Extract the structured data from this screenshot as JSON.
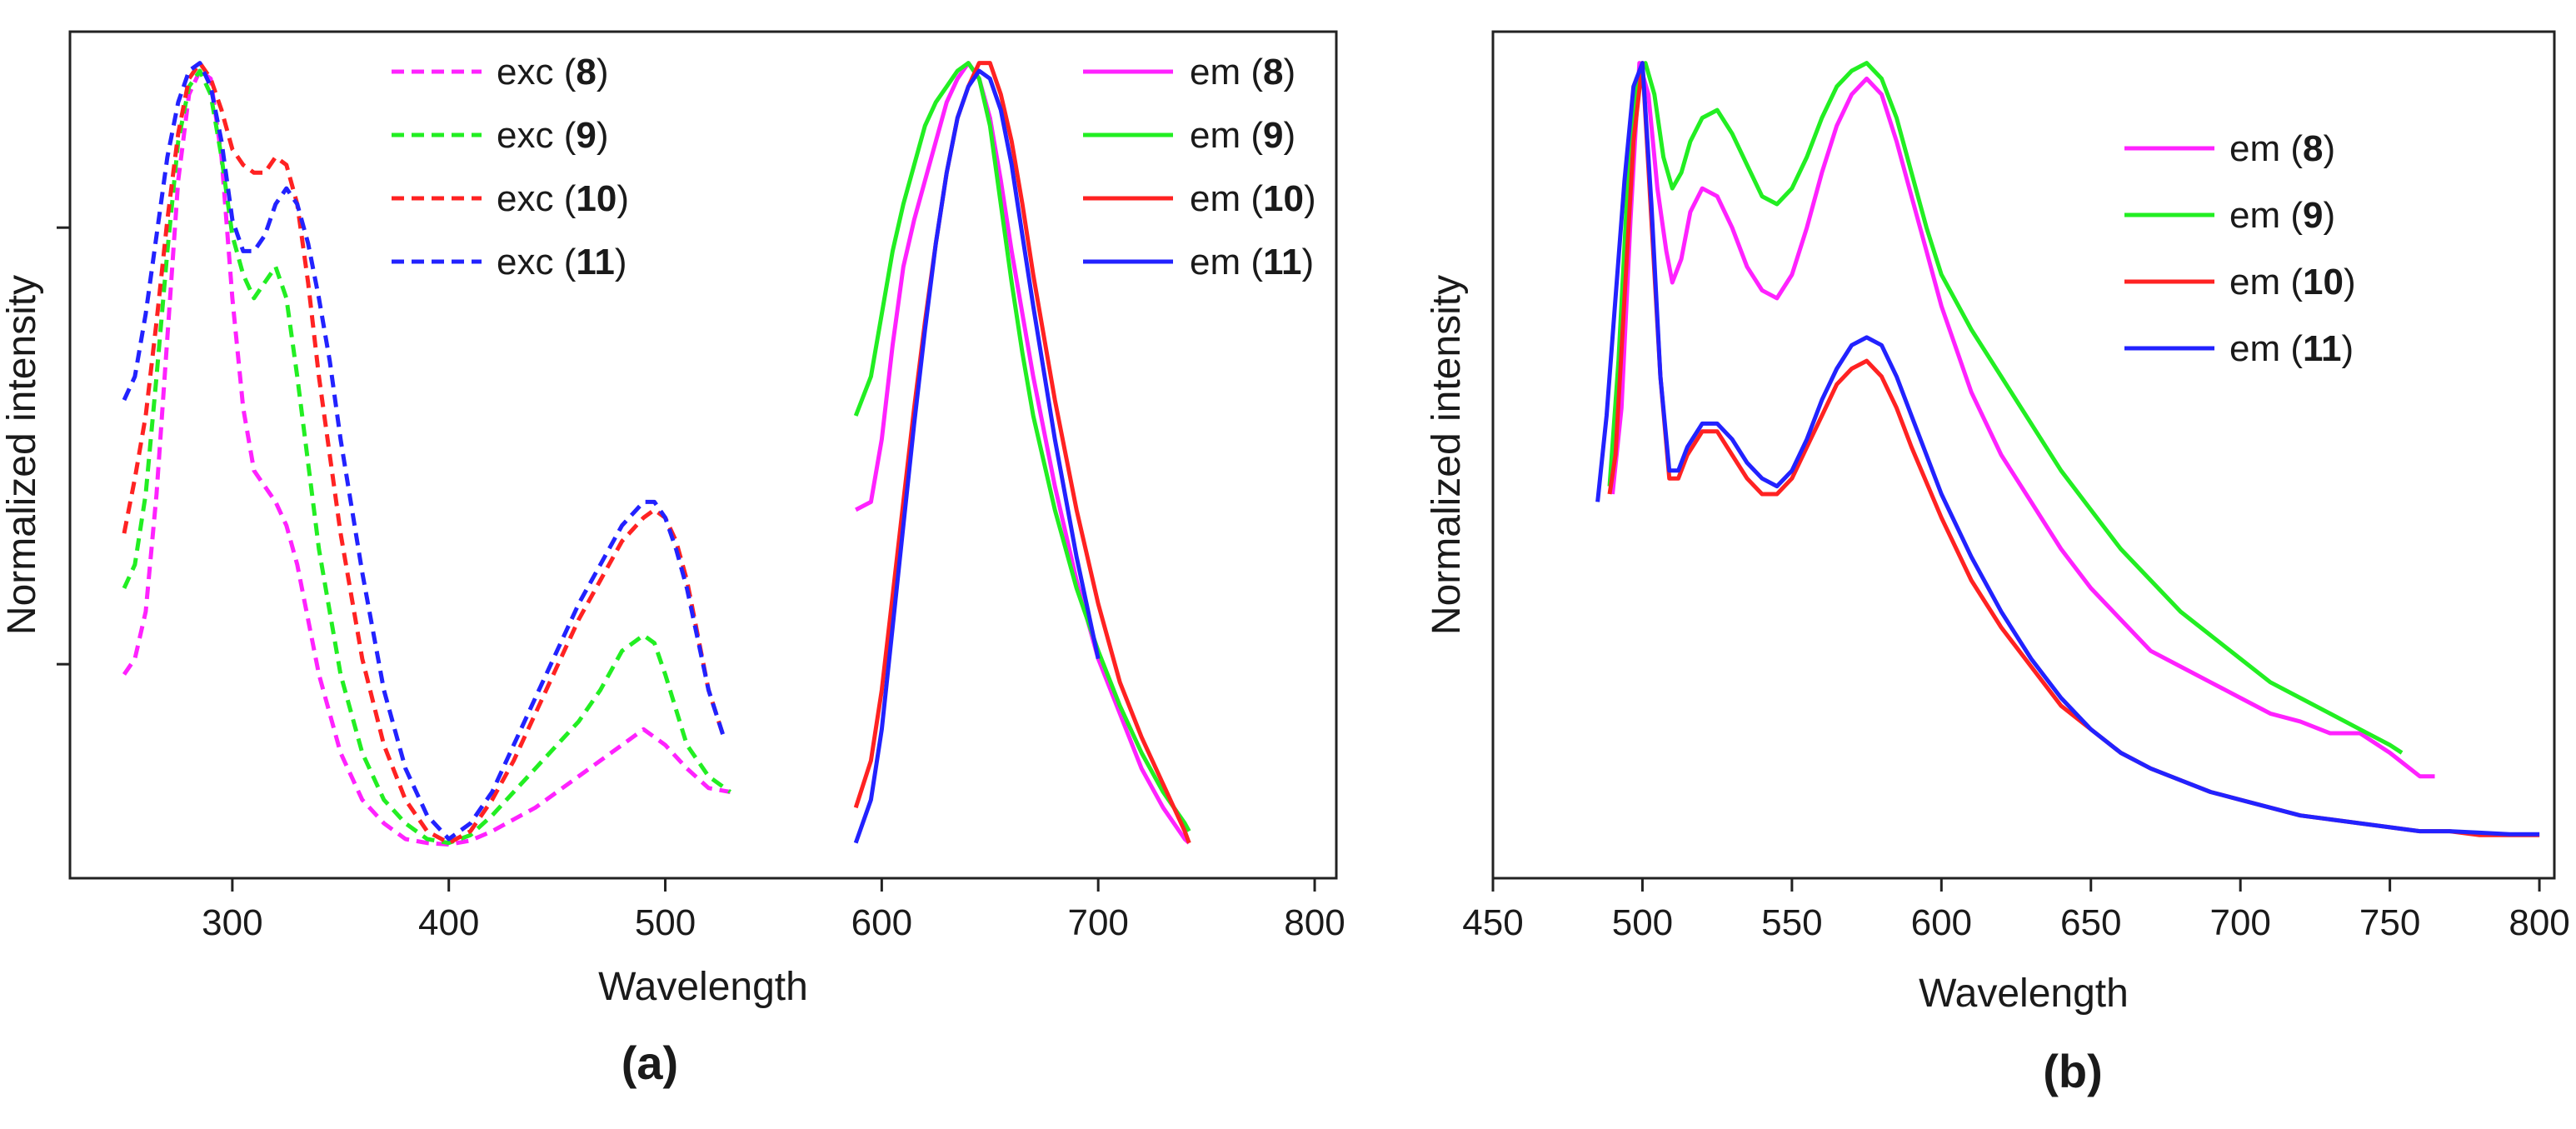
{
  "chart_data": [
    {
      "type": "line",
      "panel_label": "(a)",
      "xlabel": "Wavelength",
      "ylabel": "Normalized intensity",
      "xlim": [
        225,
        810
      ],
      "ylim": [
        -0.04,
        1.04
      ],
      "xticks": [
        300,
        400,
        500,
        600,
        700,
        800
      ],
      "yticks": [
        0.233,
        0.79
      ],
      "show_ytick_labels": false,
      "legend_columns": [
        {
          "position": "top-center",
          "series": [
            0,
            1,
            2,
            3
          ]
        },
        {
          "position": "top-right",
          "series": [
            4,
            5,
            6,
            7
          ]
        }
      ],
      "series": [
        {
          "name": "exc",
          "label_num": "8",
          "color": "#ff22ff",
          "dash": true,
          "x": [
            250,
            255,
            260,
            265,
            270,
            275,
            280,
            285,
            290,
            295,
            300,
            305,
            310,
            315,
            320,
            325,
            330,
            340,
            350,
            360,
            370,
            380,
            390,
            400,
            410,
            420,
            430,
            440,
            450,
            460,
            470,
            480,
            490,
            495,
            500,
            510,
            520,
            530
          ],
          "y": [
            0.22,
            0.24,
            0.3,
            0.45,
            0.65,
            0.85,
            0.96,
            0.99,
            0.98,
            0.88,
            0.7,
            0.56,
            0.48,
            0.46,
            0.44,
            0.41,
            0.36,
            0.22,
            0.12,
            0.06,
            0.03,
            0.01,
            0.005,
            0.003,
            0.008,
            0.02,
            0.035,
            0.05,
            0.07,
            0.09,
            0.11,
            0.13,
            0.15,
            0.14,
            0.13,
            0.1,
            0.075,
            0.07
          ]
        },
        {
          "name": "exc",
          "label_num": "9",
          "color": "#22ee22",
          "dash": true,
          "x": [
            250,
            255,
            260,
            265,
            270,
            275,
            280,
            285,
            290,
            295,
            300,
            305,
            310,
            315,
            320,
            325,
            330,
            335,
            340,
            350,
            360,
            370,
            380,
            390,
            400,
            410,
            420,
            430,
            440,
            450,
            460,
            470,
            480,
            490,
            495,
            500,
            510,
            520,
            530
          ],
          "y": [
            0.33,
            0.36,
            0.45,
            0.6,
            0.76,
            0.9,
            0.97,
            0.99,
            0.96,
            0.88,
            0.78,
            0.73,
            0.7,
            0.72,
            0.74,
            0.7,
            0.6,
            0.49,
            0.38,
            0.22,
            0.12,
            0.06,
            0.03,
            0.01,
            0.005,
            0.015,
            0.04,
            0.07,
            0.1,
            0.13,
            0.16,
            0.2,
            0.25,
            0.27,
            0.26,
            0.22,
            0.13,
            0.09,
            0.07
          ]
        },
        {
          "name": "exc",
          "label_num": "10",
          "color": "#ff2222",
          "dash": true,
          "x": [
            250,
            255,
            260,
            265,
            270,
            275,
            280,
            285,
            290,
            295,
            300,
            305,
            310,
            315,
            320,
            325,
            330,
            335,
            340,
            350,
            360,
            370,
            380,
            390,
            400,
            410,
            420,
            430,
            440,
            450,
            460,
            470,
            480,
            490,
            495,
            500,
            505,
            510,
            520,
            527
          ],
          "y": [
            0.4,
            0.47,
            0.55,
            0.67,
            0.8,
            0.91,
            0.98,
            1.0,
            0.98,
            0.94,
            0.89,
            0.87,
            0.86,
            0.86,
            0.88,
            0.87,
            0.82,
            0.72,
            0.6,
            0.4,
            0.24,
            0.13,
            0.06,
            0.02,
            0.005,
            0.02,
            0.06,
            0.11,
            0.17,
            0.23,
            0.29,
            0.34,
            0.39,
            0.42,
            0.43,
            0.42,
            0.39,
            0.34,
            0.2,
            0.14
          ]
        },
        {
          "name": "exc",
          "label_num": "11",
          "color": "#2222ff",
          "dash": true,
          "x": [
            250,
            255,
            260,
            265,
            270,
            275,
            280,
            285,
            290,
            295,
            300,
            305,
            310,
            315,
            320,
            325,
            330,
            335,
            340,
            345,
            350,
            360,
            370,
            380,
            390,
            400,
            410,
            420,
            430,
            440,
            450,
            460,
            470,
            480,
            490,
            495,
            500,
            505,
            510,
            520,
            527
          ],
          "y": [
            0.57,
            0.6,
            0.68,
            0.78,
            0.88,
            0.95,
            0.99,
            1.0,
            0.97,
            0.9,
            0.8,
            0.76,
            0.76,
            0.78,
            0.82,
            0.84,
            0.82,
            0.77,
            0.7,
            0.62,
            0.52,
            0.35,
            0.2,
            0.1,
            0.04,
            0.01,
            0.03,
            0.07,
            0.13,
            0.19,
            0.25,
            0.31,
            0.36,
            0.41,
            0.44,
            0.44,
            0.42,
            0.38,
            0.33,
            0.2,
            0.14
          ]
        },
        {
          "name": "em",
          "label_num": "8",
          "color": "#ff22ff",
          "dash": false,
          "x": [
            588,
            595,
            600,
            605,
            610,
            615,
            620,
            625,
            630,
            635,
            640,
            645,
            650,
            655,
            660,
            665,
            670,
            680,
            690,
            700,
            710,
            720,
            730,
            740,
            742
          ],
          "y": [
            0.43,
            0.44,
            0.52,
            0.64,
            0.74,
            0.8,
            0.85,
            0.9,
            0.95,
            0.98,
            1.0,
            0.98,
            0.93,
            0.85,
            0.76,
            0.68,
            0.6,
            0.46,
            0.34,
            0.24,
            0.17,
            0.1,
            0.05,
            0.01,
            0.005
          ]
        },
        {
          "name": "em",
          "label_num": "9",
          "color": "#22ee22",
          "dash": false,
          "x": [
            588,
            595,
            600,
            605,
            610,
            615,
            620,
            625,
            630,
            635,
            640,
            645,
            650,
            655,
            660,
            665,
            670,
            680,
            690,
            700,
            710,
            720,
            730,
            740,
            742
          ],
          "y": [
            0.55,
            0.6,
            0.68,
            0.76,
            0.82,
            0.87,
            0.92,
            0.95,
            0.97,
            0.99,
            1.0,
            0.98,
            0.92,
            0.82,
            0.72,
            0.63,
            0.55,
            0.43,
            0.33,
            0.25,
            0.18,
            0.12,
            0.07,
            0.03,
            0.02
          ]
        },
        {
          "name": "em",
          "label_num": "10",
          "color": "#ff2222",
          "dash": false,
          "x": [
            588,
            595,
            600,
            605,
            610,
            615,
            620,
            625,
            630,
            635,
            640,
            645,
            650,
            655,
            660,
            665,
            670,
            680,
            690,
            700,
            710,
            720,
            730,
            740,
            742
          ],
          "y": [
            0.05,
            0.11,
            0.2,
            0.32,
            0.44,
            0.56,
            0.67,
            0.77,
            0.86,
            0.93,
            0.97,
            1.0,
            1.0,
            0.96,
            0.9,
            0.82,
            0.73,
            0.57,
            0.43,
            0.31,
            0.21,
            0.14,
            0.08,
            0.02,
            0.005
          ]
        },
        {
          "name": "em",
          "label_num": "11",
          "color": "#2222ff",
          "dash": false,
          "x": [
            588,
            595,
            600,
            605,
            610,
            615,
            620,
            625,
            630,
            635,
            640,
            645,
            650,
            655,
            660,
            665,
            670,
            680,
            690,
            700
          ],
          "y": [
            0.005,
            0.06,
            0.15,
            0.28,
            0.41,
            0.54,
            0.66,
            0.77,
            0.86,
            0.93,
            0.97,
            0.99,
            0.98,
            0.94,
            0.87,
            0.78,
            0.69,
            0.52,
            0.37,
            0.24
          ]
        }
      ]
    },
    {
      "type": "line",
      "panel_label": "(b)",
      "xlabel": "Wavelength",
      "ylabel": "Normalized intensity",
      "xlim": [
        450,
        805
      ],
      "ylim": [
        -0.04,
        1.04
      ],
      "xticks": [
        450,
        500,
        550,
        600,
        650,
        700,
        750,
        800
      ],
      "yticks": [],
      "show_ytick_labels": false,
      "legend_columns": [
        {
          "position": "top-right",
          "series": [
            0,
            1,
            2,
            3
          ]
        }
      ],
      "series": [
        {
          "name": "em",
          "label_num": "8",
          "color": "#ff22ff",
          "dash": false,
          "x": [
            490,
            493,
            496,
            499,
            502,
            505,
            508,
            510,
            513,
            516,
            520,
            525,
            530,
            535,
            540,
            545,
            550,
            555,
            560,
            565,
            570,
            575,
            580,
            585,
            590,
            595,
            600,
            610,
            620,
            630,
            640,
            650,
            660,
            670,
            680,
            690,
            700,
            710,
            720,
            730,
            740,
            750,
            760,
            765
          ],
          "y": [
            0.45,
            0.56,
            0.8,
            1.0,
            0.96,
            0.84,
            0.76,
            0.72,
            0.75,
            0.81,
            0.84,
            0.83,
            0.79,
            0.74,
            0.71,
            0.7,
            0.73,
            0.79,
            0.86,
            0.92,
            0.96,
            0.98,
            0.96,
            0.9,
            0.83,
            0.76,
            0.69,
            0.58,
            0.5,
            0.44,
            0.38,
            0.33,
            0.29,
            0.25,
            0.23,
            0.21,
            0.19,
            0.17,
            0.16,
            0.145,
            0.145,
            0.12,
            0.09,
            0.09
          ]
        },
        {
          "name": "em",
          "label_num": "9",
          "color": "#22ee22",
          "dash": false,
          "x": [
            489,
            492,
            495,
            498,
            501,
            504,
            507,
            510,
            513,
            516,
            520,
            525,
            530,
            535,
            540,
            545,
            550,
            555,
            560,
            565,
            570,
            575,
            580,
            585,
            590,
            595,
            600,
            610,
            620,
            630,
            640,
            650,
            660,
            670,
            680,
            690,
            700,
            710,
            720,
            730,
            740,
            750,
            754
          ],
          "y": [
            0.46,
            0.62,
            0.84,
            0.98,
            1.0,
            0.96,
            0.88,
            0.84,
            0.86,
            0.9,
            0.93,
            0.94,
            0.91,
            0.87,
            0.83,
            0.82,
            0.84,
            0.88,
            0.93,
            0.97,
            0.99,
            1.0,
            0.98,
            0.93,
            0.86,
            0.79,
            0.73,
            0.66,
            0.6,
            0.54,
            0.48,
            0.43,
            0.38,
            0.34,
            0.3,
            0.27,
            0.24,
            0.21,
            0.19,
            0.17,
            0.15,
            0.13,
            0.12
          ]
        },
        {
          "name": "em",
          "label_num": "10",
          "color": "#ff2222",
          "dash": false,
          "x": [
            489,
            491,
            494,
            497,
            500,
            503,
            506,
            509,
            512,
            515,
            520,
            525,
            530,
            535,
            540,
            545,
            550,
            555,
            560,
            565,
            570,
            575,
            580,
            585,
            590,
            600,
            610,
            620,
            630,
            640,
            650,
            660,
            670,
            680,
            690,
            700,
            710,
            720,
            730,
            740,
            750,
            760,
            770,
            780,
            790,
            800
          ],
          "y": [
            0.45,
            0.5,
            0.7,
            0.9,
            1.0,
            0.8,
            0.6,
            0.47,
            0.47,
            0.5,
            0.53,
            0.53,
            0.5,
            0.47,
            0.45,
            0.45,
            0.47,
            0.51,
            0.55,
            0.59,
            0.61,
            0.62,
            0.6,
            0.56,
            0.51,
            0.42,
            0.34,
            0.28,
            0.23,
            0.18,
            0.15,
            0.12,
            0.1,
            0.085,
            0.07,
            0.06,
            0.05,
            0.04,
            0.035,
            0.03,
            0.025,
            0.02,
            0.02,
            0.015,
            0.015,
            0.015
          ]
        },
        {
          "name": "em",
          "label_num": "11",
          "color": "#2222ff",
          "dash": false,
          "x": [
            485,
            488,
            491,
            494,
            497,
            500,
            503,
            506,
            509,
            512,
            515,
            520,
            525,
            530,
            535,
            540,
            545,
            550,
            555,
            560,
            565,
            570,
            575,
            580,
            585,
            590,
            600,
            610,
            620,
            630,
            640,
            650,
            660,
            670,
            680,
            690,
            700,
            710,
            720,
            730,
            740,
            750,
            760,
            770,
            780,
            790,
            800
          ],
          "y": [
            0.44,
            0.55,
            0.7,
            0.85,
            0.97,
            1.0,
            0.82,
            0.6,
            0.48,
            0.48,
            0.51,
            0.54,
            0.54,
            0.52,
            0.49,
            0.47,
            0.46,
            0.48,
            0.52,
            0.57,
            0.61,
            0.64,
            0.65,
            0.64,
            0.6,
            0.55,
            0.45,
            0.37,
            0.3,
            0.24,
            0.19,
            0.15,
            0.12,
            0.1,
            0.085,
            0.07,
            0.06,
            0.05,
            0.04,
            0.035,
            0.03,
            0.025,
            0.02,
            0.02,
            0.018,
            0.016,
            0.016
          ]
        }
      ]
    }
  ]
}
